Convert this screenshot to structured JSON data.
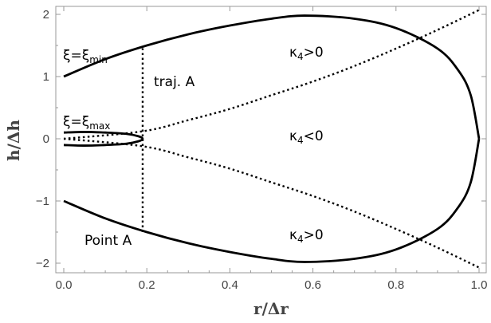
{
  "chart_data": {
    "type": "line",
    "xlabel": "r/Δr",
    "ylabel": "h/Δh",
    "xlim": [
      0.0,
      1.0
    ],
    "ylim": [
      -2.2,
      2.2
    ],
    "x_ticks": [
      0.0,
      0.2,
      0.4,
      0.6,
      0.8,
      1.0
    ],
    "x_tick_labels": [
      "0.0",
      "0.2",
      "0.4",
      "0.6",
      "0.8",
      "1.0"
    ],
    "y_ticks": [
      -2,
      -1,
      0,
      1,
      2
    ],
    "y_tick_labels": [
      "−2",
      "−1",
      "0",
      "1",
      "2"
    ],
    "grid": false,
    "series": [
      {
        "style": "solid",
        "x": [
          0.0,
          0.1,
          0.2,
          0.3,
          0.4,
          0.5,
          0.58,
          0.7,
          0.8,
          0.9,
          0.95,
          0.98,
          1.0
        ],
        "y": [
          1.0,
          1.28,
          1.5,
          1.68,
          1.82,
          1.93,
          1.98,
          1.93,
          1.78,
          1.45,
          1.1,
          0.7,
          0.0
        ]
      },
      {
        "style": "solid",
        "x": [
          0.0,
          0.1,
          0.2,
          0.3,
          0.4,
          0.5,
          0.58,
          0.7,
          0.8,
          0.9,
          0.95,
          0.98,
          1.0
        ],
        "y": [
          -1.0,
          -1.28,
          -1.5,
          -1.68,
          -1.82,
          -1.93,
          -1.98,
          -1.93,
          -1.78,
          -1.45,
          -1.1,
          -0.7,
          0.0
        ]
      },
      {
        "style": "solid",
        "x": [
          0.0,
          0.05,
          0.1,
          0.15,
          0.18,
          0.19,
          0.18,
          0.15,
          0.1,
          0.05,
          0.0
        ],
        "y": [
          0.1,
          0.11,
          0.1,
          0.08,
          0.04,
          0.0,
          -0.04,
          -0.08,
          -0.1,
          -0.11,
          -0.1
        ]
      },
      {
        "style": "dotted",
        "x": [
          0.0,
          0.19,
          0.3,
          0.4,
          0.5,
          0.6,
          0.7,
          0.8,
          0.9,
          1.0
        ],
        "y": [
          0.0,
          0.12,
          0.3,
          0.48,
          0.7,
          0.92,
          1.17,
          1.45,
          1.75,
          2.07
        ]
      },
      {
        "style": "dotted",
        "x": [
          0.0,
          0.19,
          0.3,
          0.4,
          0.5,
          0.6,
          0.7,
          0.8,
          0.9,
          1.0
        ],
        "y": [
          0.0,
          -0.12,
          -0.3,
          -0.48,
          -0.7,
          -0.92,
          -1.17,
          -1.45,
          -1.75,
          -2.07
        ]
      },
      {
        "style": "dotted",
        "x": [
          0.19,
          0.19
        ],
        "y": [
          -1.5,
          1.5
        ]
      }
    ],
    "annotations": [
      {
        "text": "κ4>0",
        "x": 0.63,
        "y": 1.55
      },
      {
        "text": "κ4<0",
        "x": 0.63,
        "y": 0.1
      },
      {
        "text": "κ4>0",
        "x": 0.63,
        "y": -1.6
      },
      {
        "text": "traj. A",
        "x": 0.21,
        "y": 1.0
      },
      {
        "text": "ξ=ξmin",
        "x": 0.01,
        "y": 1.45
      },
      {
        "text": "ξ=ξmax",
        "x": 0.01,
        "y": 0.32
      },
      {
        "text": "Point A",
        "x": 0.05,
        "y": -1.8
      }
    ]
  },
  "labels": {
    "kappa_top": {
      "base": "κ",
      "sub": "4",
      "rest": ">0"
    },
    "kappa_mid": {
      "base": "κ",
      "sub": "4",
      "rest": "<0"
    },
    "kappa_bot": {
      "base": "κ",
      "sub": "4",
      "rest": ">0"
    },
    "traj": "traj. A",
    "xi_min": {
      "base": "ξ=ξ",
      "sub": "min"
    },
    "xi_max": {
      "base": "ξ=ξ",
      "sub": "max"
    },
    "point": "Point A"
  }
}
